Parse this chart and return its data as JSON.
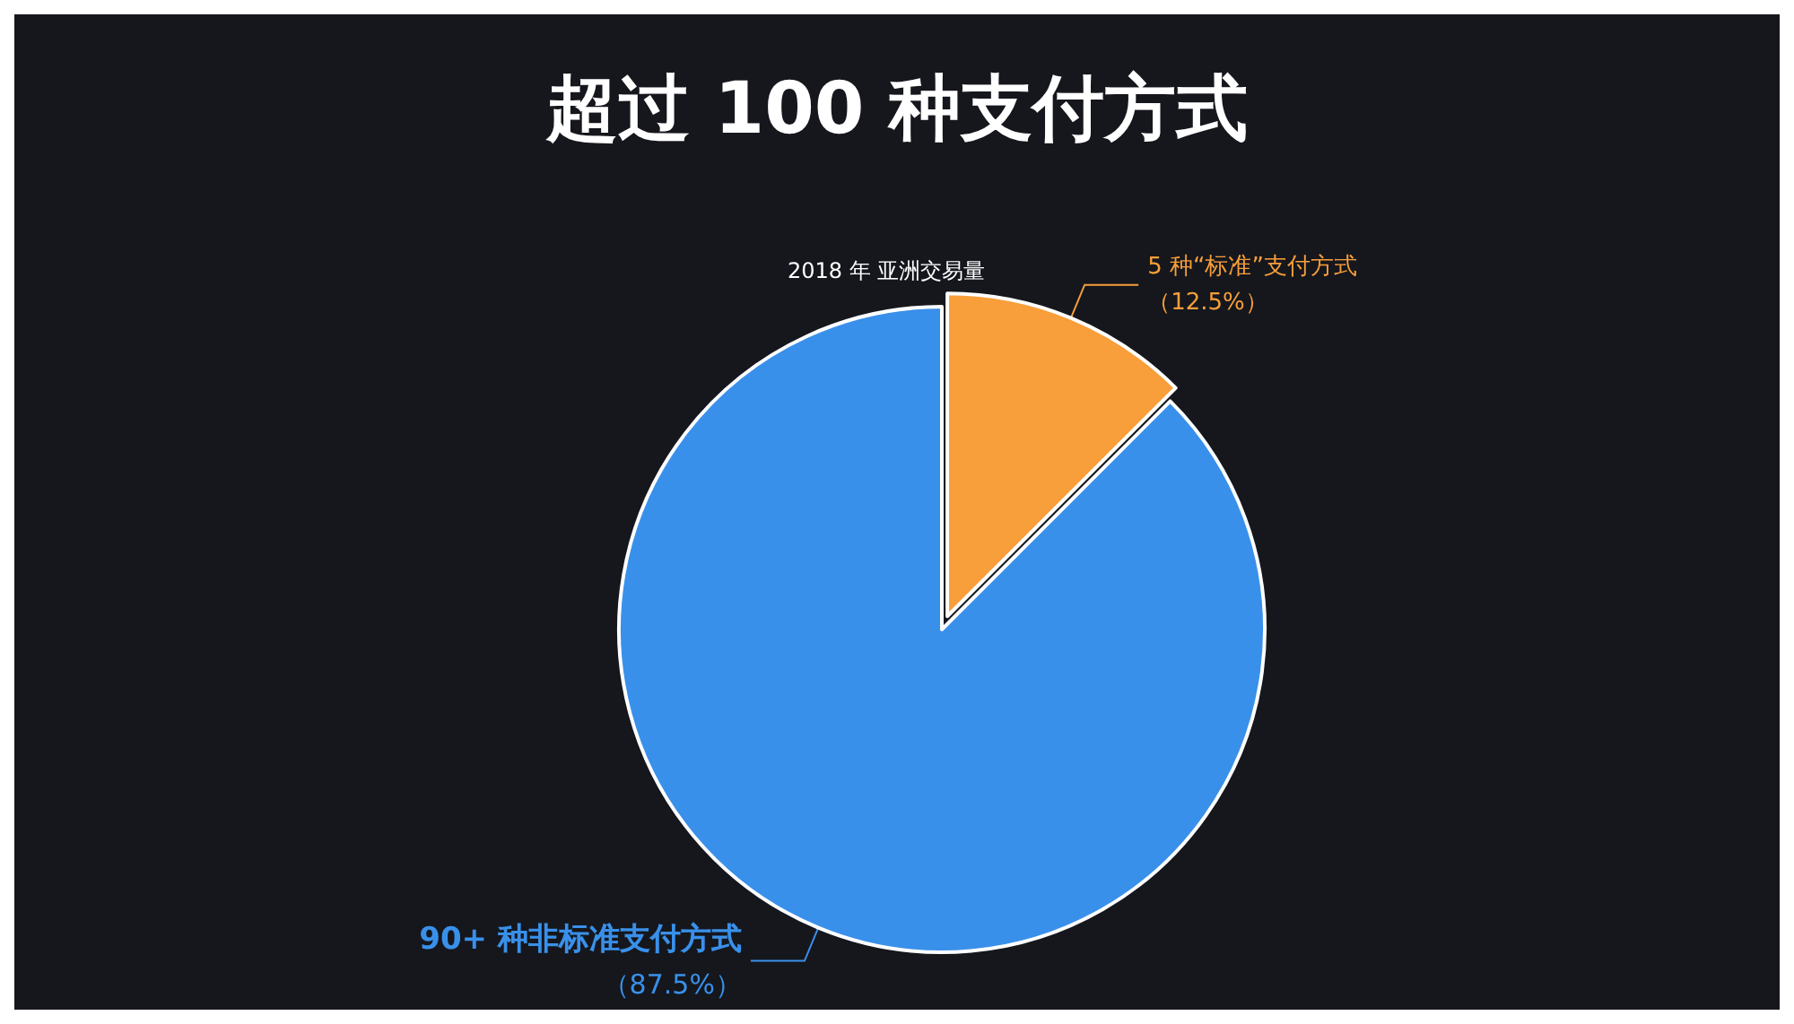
{
  "chart_data": {
    "type": "pie",
    "title": "超过 100 种支付方式",
    "subtitle": "2018 年 亚洲交易量",
    "categories": [
      "5 种“标准”支付方式",
      "90+ 种非标准支付方式"
    ],
    "values": [
      12.5,
      87.5
    ],
    "colors": [
      "#f89e3a",
      "#3990ea"
    ],
    "value_labels": [
      "（12.5%）",
      "（87.5%）"
    ],
    "legend": false
  }
}
